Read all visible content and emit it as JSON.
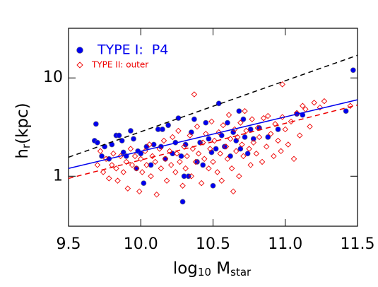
{
  "chart_data": {
    "type": "scatter",
    "xlabel": "log",
    "xlabel_sub": "10",
    "xlabel_rest": " M",
    "xlabel_sub2": "star",
    "ylabel": "h",
    "ylabel_sub": "r",
    "ylabel_rest": "(kpc)",
    "xlim": [
      9.5,
      11.5
    ],
    "xticks": [
      9.5,
      {
        "value": 10,
        "label": "10.0"
      },
      10.5,
      {
        "value": 11,
        "label": "11.0"
      },
      11.5
    ],
    "ylim": [
      0.31,
      32
    ],
    "yticks": [
      1,
      10
    ],
    "ylog": true,
    "series": [
      {
        "name": "TYPE I:  P4",
        "color": "#0000ee",
        "marker": "circle",
        "x": [
          9.68,
          9.69,
          9.7,
          9.73,
          9.75,
          9.78,
          9.8,
          9.83,
          9.85,
          9.87,
          9.88,
          9.9,
          9.93,
          9.95,
          9.97,
          9.98,
          10.0,
          10.02,
          10.04,
          10.07,
          10.09,
          10.12,
          10.14,
          10.15,
          10.17,
          10.19,
          10.22,
          10.24,
          10.26,
          10.28,
          10.29,
          10.3,
          10.31,
          10.33,
          10.35,
          10.37,
          10.39,
          10.41,
          10.43,
          10.45,
          10.47,
          10.49,
          10.5,
          10.52,
          10.54,
          10.56,
          10.58,
          10.6,
          10.62,
          10.64,
          10.66,
          10.68,
          10.69,
          10.71,
          10.72,
          10.74,
          10.76,
          10.78,
          10.82,
          10.88,
          10.95,
          11.08,
          11.12,
          11.42,
          11.47
        ],
        "values": [
          2.3,
          3.4,
          2.2,
          1.6,
          2.0,
          1.5,
          2.1,
          2.6,
          2.6,
          2.3,
          1.75,
          1.6,
          2.9,
          2.4,
          1.2,
          1.8,
          1.7,
          0.85,
          2.0,
          1.3,
          2.1,
          3.0,
          2.0,
          3.0,
          1.5,
          3.3,
          1.7,
          2.2,
          3.9,
          1.6,
          0.55,
          1.0,
          2.1,
          1.0,
          2.8,
          3.8,
          1.4,
          2.2,
          1.3,
          3.5,
          2.4,
          1.75,
          0.8,
          1.9,
          5.5,
          2.6,
          2.0,
          3.5,
          1.6,
          2.8,
          2.3,
          4.6,
          1.9,
          3.8,
          2.5,
          1.7,
          3.0,
          2.4,
          3.1,
          2.5,
          3.0,
          4.3,
          4.2,
          4.6,
          12.0
        ]
      },
      {
        "name": "TYPE II: outer",
        "color": "#ee0000",
        "marker": "diamond",
        "x": [
          9.7,
          9.72,
          9.74,
          9.76,
          9.78,
          9.8,
          9.81,
          9.83,
          9.84,
          9.86,
          9.88,
          9.9,
          9.91,
          9.93,
          9.94,
          9.96,
          9.97,
          9.99,
          10.0,
          10.01,
          10.03,
          10.04,
          10.06,
          10.07,
          10.08,
          10.1,
          10.11,
          10.13,
          10.14,
          10.16,
          10.17,
          10.18,
          10.2,
          10.21,
          10.22,
          10.24,
          10.25,
          10.26,
          10.27,
          10.29,
          10.3,
          10.31,
          10.32,
          10.34,
          10.35,
          10.36,
          10.38,
          10.39,
          10.4,
          10.42,
          10.43,
          10.44,
          10.45,
          10.47,
          10.48,
          10.49,
          10.5,
          10.51,
          10.53,
          10.54,
          10.55,
          10.56,
          10.57,
          10.59,
          10.6,
          10.61,
          10.62,
          10.63,
          10.65,
          10.66,
          10.67,
          10.68,
          10.69,
          10.7,
          10.71,
          10.72,
          10.73,
          10.75,
          10.76,
          10.77,
          10.78,
          10.8,
          10.81,
          10.82,
          10.84,
          10.85,
          10.87,
          10.88,
          10.9,
          10.92,
          10.93,
          10.95,
          10.97,
          10.98,
          11.0,
          11.02,
          11.04,
          11.06,
          11.08,
          11.1,
          11.12,
          11.14,
          11.17,
          11.2,
          11.24,
          11.27,
          11.45,
          10.98,
          10.64,
          10.37
        ],
        "values": [
          1.3,
          1.8,
          1.1,
          1.5,
          0.95,
          1.3,
          1.7,
          1.2,
          0.9,
          1.6,
          1.1,
          1.4,
          0.75,
          1.9,
          1.3,
          1.6,
          1.2,
          0.7,
          1.5,
          1.1,
          1.8,
          1.3,
          2.1,
          1.0,
          1.6,
          1.4,
          0.65,
          1.9,
          1.2,
          2.3,
          1.5,
          0.9,
          1.8,
          1.3,
          2.5,
          1.1,
          1.7,
          2.9,
          1.4,
          0.8,
          2.0,
          1.2,
          1.6,
          2.6,
          1.0,
          1.9,
          1.4,
          3.2,
          1.7,
          0.85,
          2.2,
          1.5,
          2.7,
          1.2,
          1.9,
          3.6,
          1.4,
          2.3,
          1.1,
          2.8,
          1.7,
          0.9,
          3.3,
          2.0,
          1.5,
          4.2,
          2.4,
          1.2,
          3.0,
          1.8,
          2.5,
          1.0,
          3.5,
          2.1,
          1.6,
          4.6,
          2.9,
          1.9,
          1.3,
          3.8,
          2.2,
          1.7,
          3.1,
          2.5,
          1.4,
          3.9,
          2.0,
          4.1,
          2.7,
          1.6,
          3.4,
          2.3,
          1.8,
          4.0,
          3.0,
          2.1,
          3.6,
          1.5,
          4.4,
          2.6,
          5.2,
          4.8,
          3.2,
          5.6,
          5.0,
          5.8,
          5.2,
          8.6,
          0.7,
          6.8
        ]
      }
    ],
    "lines": [
      {
        "color": "#000000",
        "dash": true,
        "x": [
          9.5,
          11.5
        ],
        "values": [
          1.56,
          17
        ]
      },
      {
        "color": "#0000ee",
        "dash": false,
        "x": [
          9.5,
          11.5
        ],
        "values": [
          1.2,
          6.0
        ]
      },
      {
        "color": "#ee0000",
        "dash": true,
        "x": [
          9.5,
          11.5
        ],
        "values": [
          0.95,
          5.3
        ]
      }
    ]
  }
}
